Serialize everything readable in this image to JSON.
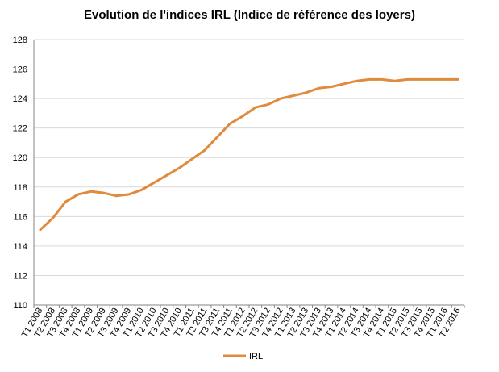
{
  "chart_data": {
    "type": "line",
    "title": "Evolution de l'indices IRL (Indice de référence des loyers)",
    "xlabel": "",
    "ylabel": "",
    "ylim": [
      110,
      128
    ],
    "yticks": [
      110,
      112,
      114,
      116,
      118,
      120,
      122,
      124,
      126,
      128
    ],
    "grid": "horizontal",
    "legend": "bottom",
    "categories": [
      "T1 2008",
      "T2 2008",
      "T3 2008",
      "T4 2008",
      "T1 2009",
      "T2 2009",
      "T3 2009",
      "T4 2009",
      "T1 2010",
      "T2 2010",
      "T3 2010",
      "T4 2010",
      "T1 2011",
      "T2 2011",
      "T3 2011",
      "T4 2011",
      "T1 2012",
      "T2 2012",
      "T3 2012",
      "T4 2012",
      "T1 2013",
      "T2 2013",
      "T3 2013",
      "T4 2013",
      "T1 2014",
      "T2 2014",
      "T3 2014",
      "T4 2014",
      "T1 2015",
      "T2 2015",
      "T3 2015",
      "T4 2015",
      "T1 2016",
      "T2 2016"
    ],
    "series": [
      {
        "name": "IRL",
        "color": "#E08A3C",
        "values": [
          115.1,
          115.9,
          117.0,
          117.5,
          117.7,
          117.6,
          117.4,
          117.5,
          117.8,
          118.3,
          118.8,
          119.3,
          119.9,
          120.5,
          121.4,
          122.3,
          122.8,
          123.4,
          123.6,
          124.0,
          124.2,
          124.4,
          124.7,
          124.8,
          125.0,
          125.2,
          125.3,
          125.3,
          125.2,
          125.3,
          125.3,
          125.3,
          125.3,
          125.3
        ]
      }
    ]
  }
}
